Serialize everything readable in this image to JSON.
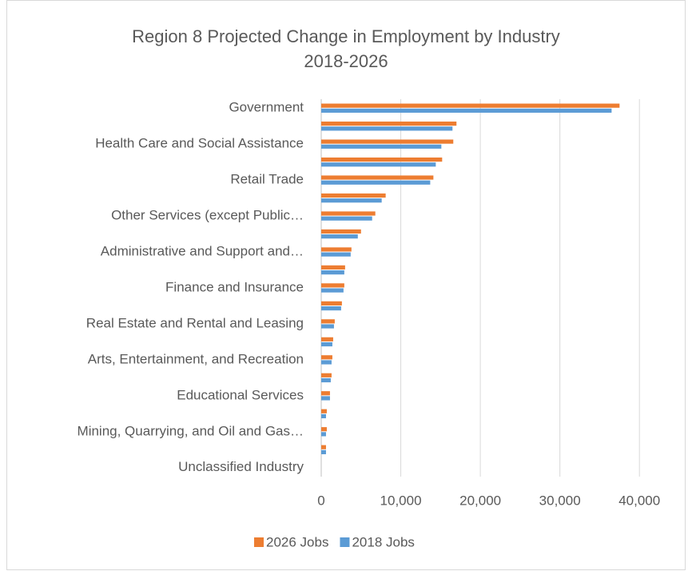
{
  "chart_data": {
    "type": "barh",
    "title": "Region 8 Projected Change in Employment by Industry",
    "subtitle": "2018-2026",
    "categories": [
      "Government",
      null,
      "Health Care and Social Assistance",
      null,
      "Retail Trade",
      null,
      "Other Services (except Public…",
      null,
      "Administrative and Support and…",
      null,
      "Finance and Insurance",
      null,
      "Real Estate and Rental and Leasing",
      null,
      "Arts, Entertainment, and Recreation",
      null,
      "Educational Services",
      null,
      "Mining, Quarrying, and Oil and Gas…",
      null,
      "Unclassified Industry"
    ],
    "series": [
      {
        "name": "2026 Jobs",
        "color": "#ed7d31",
        "values": [
          37500,
          17000,
          16600,
          15200,
          14100,
          8100,
          6800,
          5000,
          3800,
          3000,
          2900,
          2600,
          1700,
          1500,
          1400,
          1300,
          1100,
          700,
          700,
          600,
          0
        ]
      },
      {
        "name": "2018 Jobs",
        "color": "#5b9bd5",
        "values": [
          36500,
          16500,
          15100,
          14400,
          13700,
          7600,
          6400,
          4600,
          3700,
          2900,
          2800,
          2500,
          1600,
          1400,
          1300,
          1200,
          1100,
          600,
          600,
          600,
          0
        ]
      }
    ],
    "xlim": [
      0,
      45000
    ],
    "xticks": [
      0,
      {
        "value": 10000,
        "label": "10,000"
      },
      {
        "value": 20000,
        "label": "20,000"
      },
      {
        "value": 30000,
        "label": "30,000"
      },
      {
        "value": 40000,
        "label": "40,000"
      }
    ],
    "grid": true,
    "legend": "bottom"
  }
}
